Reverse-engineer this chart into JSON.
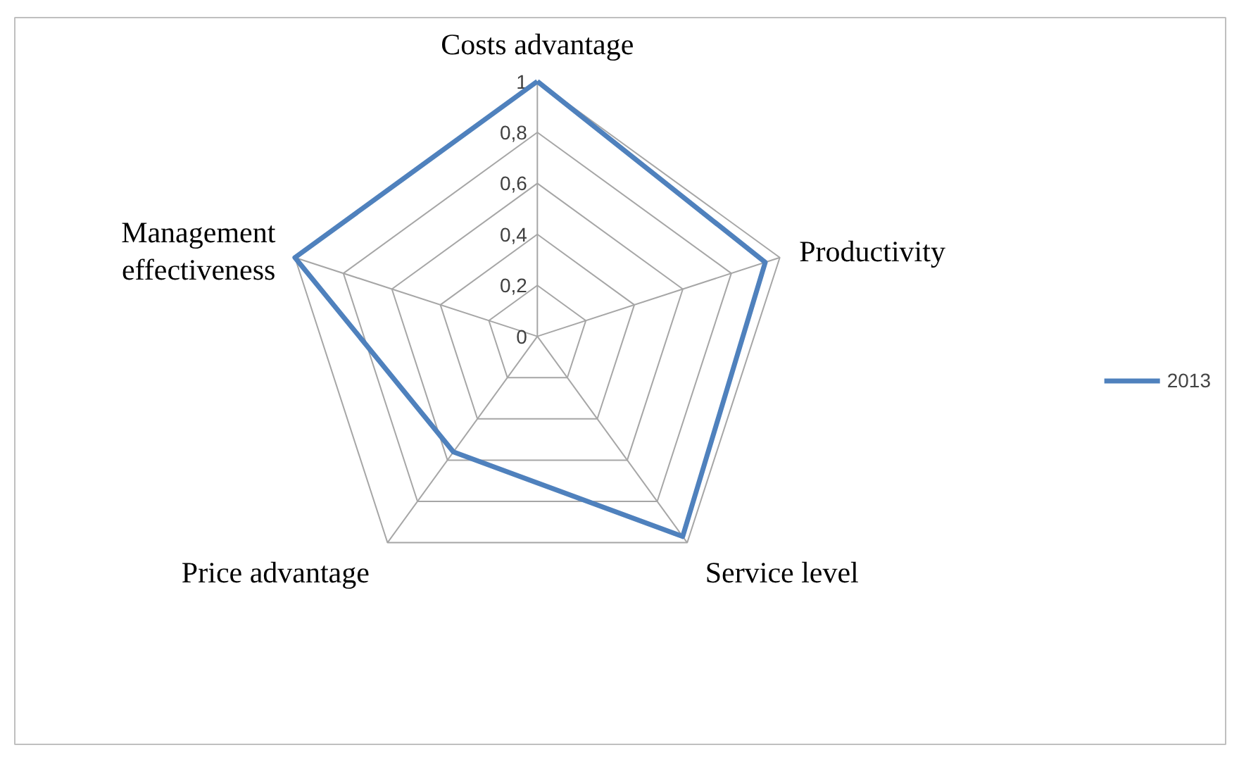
{
  "chart_data": {
    "type": "radar",
    "categories": [
      "Costs advantage",
      "Productivity",
      "Service level",
      "Price advantage",
      "Management\neffectiveness"
    ],
    "series": [
      {
        "name": "2013",
        "color": "#4f81bd",
        "values": [
          1,
          0.94,
          0.97,
          0.56,
          1
        ]
      }
    ],
    "ylim": [
      0,
      1
    ],
    "yticks": [
      0,
      {
        "value": 0.2,
        "label": "0,2"
      },
      {
        "value": 0.4,
        "label": "0,4"
      },
      {
        "value": 0.6,
        "label": "0,6"
      },
      {
        "value": 0.8,
        "label": "0,8"
      },
      1
    ],
    "grid": true,
    "legend": "right"
  }
}
